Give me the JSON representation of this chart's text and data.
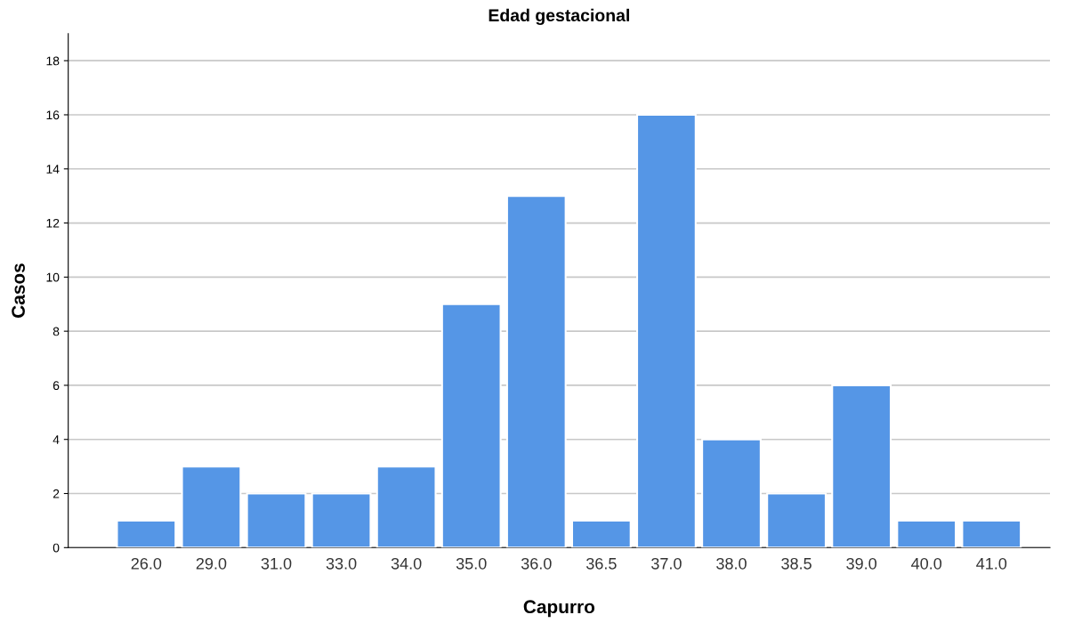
{
  "chart_data": {
    "type": "bar",
    "title": "Edad gestacional",
    "xlabel": "Capurro",
    "ylabel": "Casos",
    "categories": [
      "26.0",
      "29.0",
      "31.0",
      "33.0",
      "34.0",
      "35.0",
      "36.0",
      "36.5",
      "37.0",
      "38.0",
      "38.5",
      "39.0",
      "40.0",
      "41.0"
    ],
    "values": [
      1,
      3,
      2,
      2,
      3,
      9,
      13,
      1,
      16,
      4,
      2,
      6,
      1,
      1
    ],
    "color": "#5596e6",
    "ylim": [
      0,
      19
    ],
    "yticks": [
      0,
      2,
      4,
      6,
      8,
      10,
      12,
      14,
      16,
      18
    ],
    "grid": "y"
  }
}
